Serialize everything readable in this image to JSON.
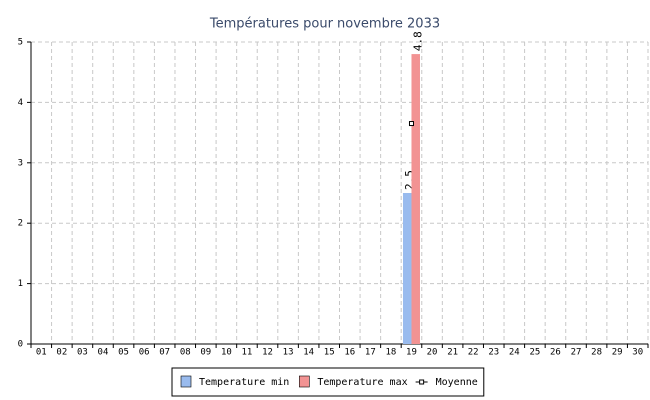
{
  "chart_data": {
    "type": "bar",
    "title": "Températures pour novembre 2033",
    "categories": [
      "01",
      "02",
      "03",
      "04",
      "05",
      "06",
      "07",
      "08",
      "09",
      "10",
      "11",
      "12",
      "13",
      "14",
      "15",
      "16",
      "17",
      "18",
      "19",
      "20",
      "21",
      "22",
      "23",
      "24",
      "25",
      "26",
      "27",
      "28",
      "29",
      "30"
    ],
    "series": [
      {
        "name": "Temperature min",
        "color": "#99bbee",
        "values": [
          null,
          null,
          null,
          null,
          null,
          null,
          null,
          null,
          null,
          null,
          null,
          null,
          null,
          null,
          null,
          null,
          null,
          null,
          2.5,
          null,
          null,
          null,
          null,
          null,
          null,
          null,
          null,
          null,
          null,
          null
        ]
      },
      {
        "name": "Temperature max",
        "color": "#f29393",
        "values": [
          null,
          null,
          null,
          null,
          null,
          null,
          null,
          null,
          null,
          null,
          null,
          null,
          null,
          null,
          null,
          null,
          null,
          null,
          4.8,
          null,
          null,
          null,
          null,
          null,
          null,
          null,
          null,
          null,
          null,
          null
        ]
      },
      {
        "name": "Moyenne",
        "color": "#000000",
        "type": "line",
        "values": [
          null,
          null,
          null,
          null,
          null,
          null,
          null,
          null,
          null,
          null,
          null,
          null,
          null,
          null,
          null,
          null,
          null,
          null,
          3.65,
          null,
          null,
          null,
          null,
          null,
          null,
          null,
          null,
          null,
          null,
          null
        ]
      }
    ],
    "ylim": [
      0,
      5
    ],
    "yticks": [
      0,
      1,
      2,
      3,
      4,
      5
    ],
    "grid": true,
    "legend": "bottom"
  }
}
